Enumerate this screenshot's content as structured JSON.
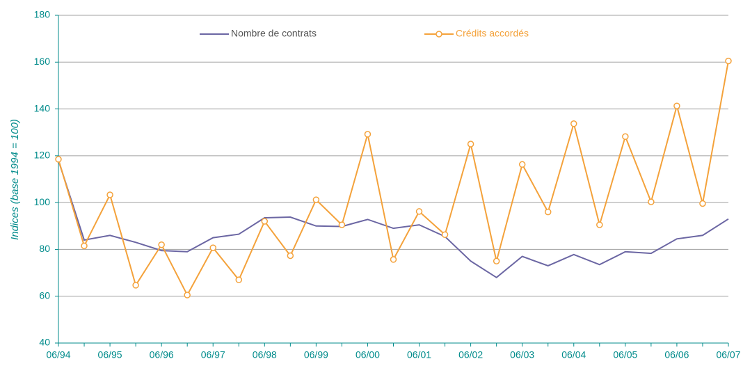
{
  "chart_data": {
    "type": "line",
    "y_label": "Indices (base 1994 = 100)",
    "categories": [
      "06/94",
      null,
      "06/95",
      null,
      "06/96",
      null,
      "06/97",
      null,
      "06/98",
      null,
      "06/99",
      null,
      "06/00",
      null,
      "06/01",
      null,
      "06/02",
      null,
      "06/03",
      null,
      "06/04",
      null,
      "06/05",
      null,
      "06/06",
      null,
      "06/07"
    ],
    "series": [
      {
        "name": "Nombre de contrats",
        "color": "#6b66a3",
        "marker": false,
        "values": [
          118,
          84,
          86,
          83,
          79.5,
          79,
          85,
          86.5,
          93.5,
          93.8,
          90,
          89.8,
          92.8,
          89,
          90.5,
          85.5,
          75,
          68,
          77,
          73,
          77.8,
          73.5,
          79,
          78.3,
          84.5,
          86,
          93
        ]
      },
      {
        "name": "Crédits accordés",
        "color": "#f4a23b",
        "marker": true,
        "values": [
          118.5,
          81.5,
          103.3,
          64.7,
          82,
          60.5,
          80.7,
          67,
          92,
          77.3,
          101.2,
          90.5,
          129.2,
          75.7,
          96.2,
          86.3,
          125,
          75,
          116.3,
          96,
          133.7,
          90.5,
          128.2,
          100.3,
          141.3,
          99.6,
          160.5
        ]
      }
    ],
    "ylim": [
      40,
      180
    ],
    "yticks": [
      40,
      60,
      80,
      100,
      120,
      140,
      160,
      180
    ],
    "grid": true,
    "legend": "top"
  }
}
